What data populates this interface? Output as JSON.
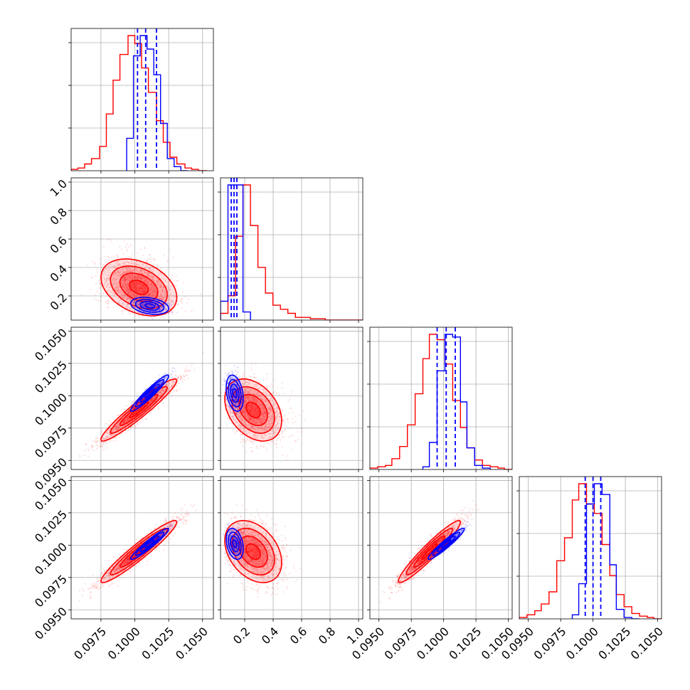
{
  "colors": {
    "primary": "#ff0000",
    "secondary": "#0000ff",
    "grid": "#b0b0b0",
    "frame": "#000000"
  },
  "chart_data": {
    "type": "corner",
    "grid": true,
    "parameters": [
      {
        "range": [
          0.0953,
          0.1058
        ],
        "ticks": [
          0.0975,
          0.1,
          0.1025,
          0.105
        ],
        "tick_labels": [
          "0.0975",
          "0.1000",
          "0.1025",
          "0.1050"
        ]
      },
      {
        "range": [
          0.03,
          1.03
        ],
        "ticks": [
          0.2,
          0.4,
          0.6,
          0.8,
          1.0
        ],
        "tick_labels": [
          "0.2",
          "0.4",
          "0.6",
          "0.8",
          "1.0"
        ]
      },
      {
        "range": [
          0.0943,
          0.1053
        ],
        "ticks": [
          0.095,
          0.0975,
          0.1,
          0.1025,
          0.105
        ],
        "tick_labels": [
          "0.0950",
          "0.0975",
          "0.1000",
          "0.1025",
          "0.1050"
        ]
      },
      {
        "range": [
          0.0943,
          0.1053
        ],
        "ticks": [
          0.095,
          0.0975,
          0.1,
          0.1025,
          0.105
        ],
        "tick_labels": [
          "0.0950",
          "0.0975",
          "0.1000",
          "0.1025",
          "0.1050"
        ]
      }
    ],
    "series": [
      {
        "color": "#ff0000",
        "means": [
          0.1003,
          0.26,
          0.0989,
          0.0995
        ],
        "sds": [
          0.0014,
          0.1,
          0.0012,
          0.0012
        ],
        "correlations": [
          [
            0,
            1,
            -0.35
          ],
          [
            0,
            2,
            0.95
          ],
          [
            0,
            3,
            0.95
          ],
          [
            1,
            2,
            -0.35
          ],
          [
            1,
            3,
            -0.35
          ],
          [
            2,
            3,
            0.95
          ]
        ],
        "quantile_lines": null,
        "histograms": [
          {
            "edges": [
              0.0953,
              0.0958,
              0.0963,
              0.0968,
              0.0974,
              0.0979,
              0.0984,
              0.0989,
              0.0995,
              0.1,
              0.1005,
              0.101,
              0.1016,
              0.1021,
              0.1026,
              0.1031,
              0.1037,
              0.1042,
              0.1047,
              0.1053
            ],
            "heights": [
              1,
              2,
              5,
              9,
              18,
              42,
              67,
              86,
              100,
              94,
              76,
              58,
              37,
              21,
              10,
              5,
              2,
              1,
              0
            ]
          },
          {
            "edges": [
              0.03,
              0.0826,
              0.1353,
              0.1879,
              0.2405,
              0.2932,
              0.3458,
              0.3984,
              0.4511,
              0.5037,
              0.5563,
              0.6089,
              0.6616,
              0.7142,
              0.7668,
              0.8195,
              0.8721,
              0.9247,
              0.9774,
              1.03
            ],
            "heights": [
              5,
              18,
              62,
              100,
              70,
              39,
              20,
              11,
              8,
              5,
              2,
              2,
              1,
              1,
              0,
              0,
              0,
              0,
              0
            ]
          },
          {
            "edges": [
              0.0943,
              0.0949,
              0.0955,
              0.096,
              0.0966,
              0.0972,
              0.0978,
              0.0984,
              0.0989,
              0.0995,
              0.1001,
              0.1007,
              0.1013,
              0.1018,
              0.1024,
              0.103,
              0.1036,
              0.1042,
              0.1047,
              0.1053
            ],
            "heights": [
              1,
              2,
              3,
              8,
              17,
              33,
              56,
              82,
              100,
              96,
              78,
              51,
              31,
              16,
              7,
              3,
              2,
              1,
              0
            ]
          },
          {
            "edges": [
              0.0943,
              0.0949,
              0.0955,
              0.096,
              0.0966,
              0.0972,
              0.0978,
              0.0984,
              0.0989,
              0.0995,
              0.1001,
              0.1007,
              0.1013,
              0.1018,
              0.1024,
              0.103,
              0.1036,
              0.1042,
              0.1047,
              0.1053
            ],
            "heights": [
              1,
              3,
              6,
              11,
              20,
              43,
              60,
              88,
              100,
              85,
              78,
              55,
              32,
              18,
              9,
              4,
              2,
              1,
              0
            ]
          }
        ]
      },
      {
        "color": "#0000ff",
        "means": [
          0.1011,
          0.13,
          0.1002,
          0.1001
        ],
        "sds": [
          0.0007,
          0.03,
          0.0007,
          0.0006
        ],
        "correlations": [
          [
            0,
            1,
            -0.3
          ],
          [
            0,
            2,
            0.95
          ],
          [
            0,
            3,
            0.95
          ],
          [
            1,
            2,
            -0.3
          ],
          [
            1,
            3,
            -0.3
          ],
          [
            2,
            3,
            0.95
          ]
        ],
        "quantile_lines": [
          [
            0.1002,
            0.1008,
            0.1016
          ],
          [
            0.105,
            0.125,
            0.145
          ],
          [
            0.0995,
            0.1002,
            0.1009
          ],
          [
            0.0994,
            0.1,
            0.1006
          ]
        ],
        "histograms": [
          {
            "edges": [
              0.0994,
              0.0999,
              0.1004,
              0.1009,
              0.1014,
              0.1019,
              0.1024,
              0.1029,
              0.1034,
              0.1039
            ],
            "heights": [
              24,
              85,
              100,
              90,
              71,
              35,
              9,
              3,
              0
            ]
          },
          {
            "edges": [
              0.03,
              0.0826,
              0.1353,
              0.1879,
              0.2405
            ],
            "heights": [
              14,
              100,
              100,
              6
            ]
          },
          {
            "edges": [
              0.0984,
              0.0989,
              0.0995,
              0.1001,
              0.1007,
              0.1013,
              0.1018,
              0.1024,
              0.103,
              0.1036
            ],
            "heights": [
              2,
              20,
              73,
              100,
              98,
              50,
              16,
              3,
              1
            ]
          },
          {
            "edges": [
              0.0984,
              0.0989,
              0.0995,
              0.1001,
              0.1007,
              0.1013,
              0.1018,
              0.1024,
              0.103,
              0.1036
            ],
            "heights": [
              3,
              26,
              85,
              100,
              92,
              40,
              7,
              1,
              0
            ]
          }
        ]
      }
    ]
  }
}
